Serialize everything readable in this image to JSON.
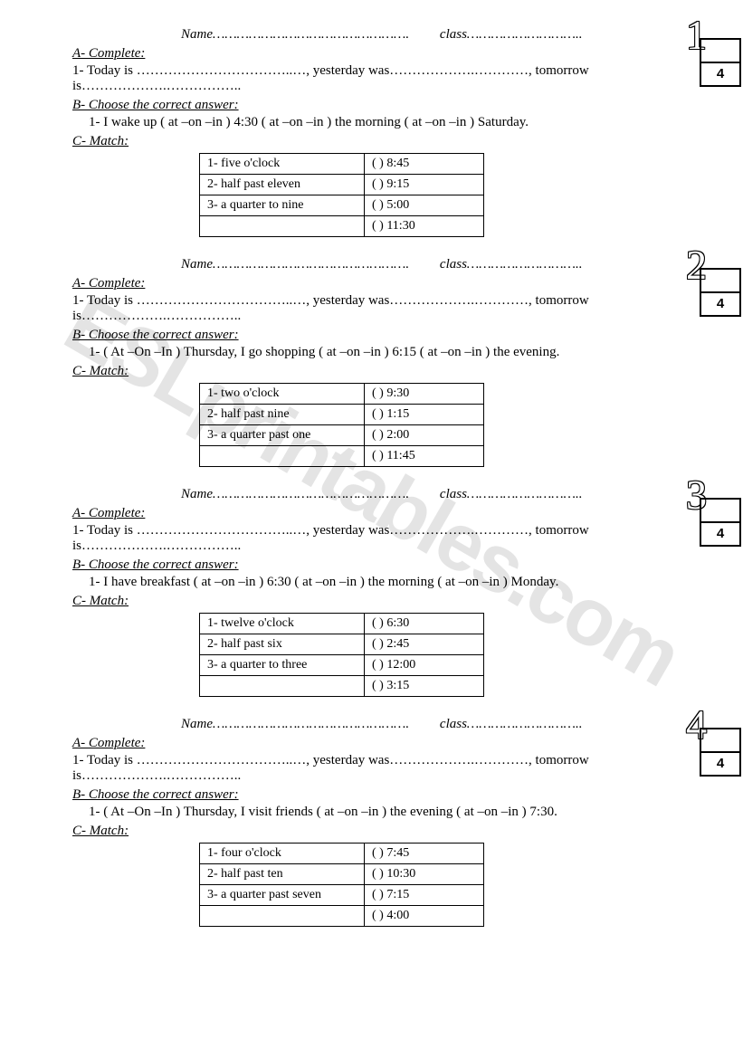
{
  "watermark": "ESLprintables.com",
  "labels": {
    "name": "Name",
    "class": "class",
    "sectionA": "A- Complete:",
    "sectionB": "B- Choose the correct answer:",
    "sectionC": "C- Match:",
    "today": "1-  Today is ……………………………..…, yesterday was……………….…………, tomorrow is……………….…………….."
  },
  "dotsLong": "………………………………………….",
  "dotsShort": "………………………..",
  "scoreDenominator": "4",
  "quizzes": [
    {
      "number": "1",
      "numberOutline": true,
      "choose": "1-  I wake up ( at –on –in ) 4:30  ( at –on –in ) the morning ( at –on –in )  Saturday.",
      "match": {
        "left": [
          "1-  five o'clock",
          "2-  half past eleven",
          "3-  a quarter to nine",
          ""
        ],
        "right": [
          "(     ) 8:45",
          "(     ) 9:15",
          "(     ) 5:00",
          "(     ) 11:30"
        ]
      }
    },
    {
      "number": "2",
      "numberOutline": true,
      "choose": "1-  ( At –On –In ) Thursday, I go shopping  ( at –on –in ) 6:15 ( at –on –in )  the evening.",
      "match": {
        "left": [
          "1-  two o'clock",
          "2-  half past nine",
          "3-  a quarter past one",
          ""
        ],
        "right": [
          "(     ) 9:30",
          "(     ) 1:15",
          "(     ) 2:00",
          "(     ) 11:45"
        ]
      }
    },
    {
      "number": "3",
      "numberOutline": true,
      "choose": "1-  I have breakfast ( at –on –in ) 6:30  ( at –on –in ) the morning ( at –on –in )  Monday.",
      "match": {
        "left": [
          "1-  twelve o'clock",
          "2-  half past six",
          "3-  a quarter to three",
          ""
        ],
        "right": [
          "(     ) 6:30",
          "(     ) 2:45",
          "(     ) 12:00",
          "(     ) 3:15"
        ]
      }
    },
    {
      "number": "4",
      "numberOutline": true,
      "choose": "1-  ( At –On –In ) Thursday, I visit friends ( at –on –in ) the evening ( at –on –in )  7:30.",
      "match": {
        "left": [
          "1-  four o'clock",
          "2-  half past ten",
          "3-  a quarter past seven",
          ""
        ],
        "right": [
          "(     ) 7:45",
          "(     ) 10:30",
          "(     ) 7:15",
          "(     ) 4:00"
        ]
      }
    }
  ]
}
